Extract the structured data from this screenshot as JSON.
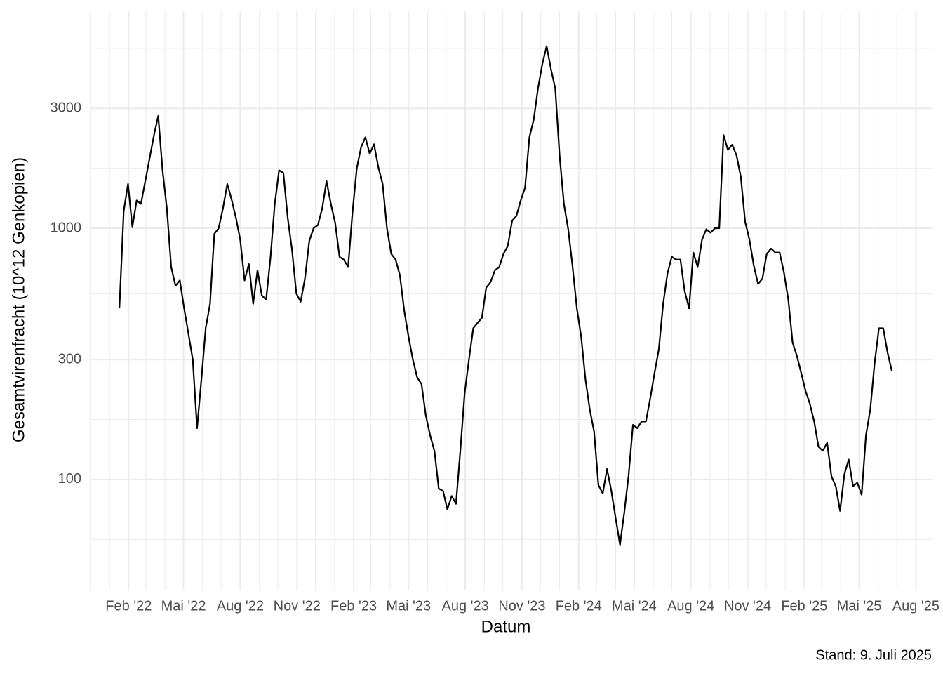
{
  "chart_data": {
    "type": "line",
    "x_label": "Datum",
    "y_label": "Gesamtvirenfracht (10^12 Genkopien)",
    "caption": "Stand: 9. Juli 2025",
    "log_y": true,
    "grid": true,
    "xlim": [
      "2021-11-30",
      "2025-08-29"
    ],
    "ylim": [
      36.4,
      7350
    ],
    "yticks": [
      100,
      300,
      1000,
      3000
    ],
    "y_minor_ticks": [
      57.7,
      173.2,
      547.7,
      1732,
      5196
    ],
    "xticks": [
      {
        "value": "2022-02-01",
        "label": "Feb '22"
      },
      {
        "value": "2022-05-01",
        "label": "Mai '22"
      },
      {
        "value": "2022-08-01",
        "label": "Aug '22"
      },
      {
        "value": "2022-11-01",
        "label": "Nov '22"
      },
      {
        "value": "2023-02-01",
        "label": "Feb '23"
      },
      {
        "value": "2023-05-01",
        "label": "Mai '23"
      },
      {
        "value": "2023-08-01",
        "label": "Aug '23"
      },
      {
        "value": "2023-11-01",
        "label": "Nov '23"
      },
      {
        "value": "2024-02-01",
        "label": "Feb '24"
      },
      {
        "value": "2024-05-01",
        "label": "Mai '24"
      },
      {
        "value": "2024-08-01",
        "label": "Aug '24"
      },
      {
        "value": "2024-11-01",
        "label": "Nov '24"
      },
      {
        "value": "2025-02-01",
        "label": "Feb '25"
      },
      {
        "value": "2025-05-01",
        "label": "Mai '25"
      },
      {
        "value": "2025-08-01",
        "label": "Aug '25"
      }
    ],
    "x_minor_ticks": [
      "2021-12-01",
      "2022-01-01",
      "2022-03-01",
      "2022-04-01",
      "2022-06-01",
      "2022-07-01",
      "2022-09-01",
      "2022-10-01",
      "2022-12-01",
      "2023-01-01",
      "2023-03-01",
      "2023-04-01",
      "2023-06-01",
      "2023-07-01",
      "2023-09-01",
      "2023-10-01",
      "2023-12-01",
      "2024-01-01",
      "2024-03-01",
      "2024-04-01",
      "2024-06-01",
      "2024-07-01",
      "2024-09-01",
      "2024-10-01",
      "2024-12-01",
      "2025-01-01",
      "2025-03-01",
      "2025-04-01",
      "2025-06-01",
      "2025-07-01"
    ],
    "x": [
      "2022-01-17",
      "2022-01-24",
      "2022-01-31",
      "2022-02-07",
      "2022-02-14",
      "2022-02-21",
      "2022-02-28",
      "2022-03-07",
      "2022-03-14",
      "2022-03-21",
      "2022-03-28",
      "2022-04-04",
      "2022-04-11",
      "2022-04-18",
      "2022-04-25",
      "2022-05-02",
      "2022-05-09",
      "2022-05-16",
      "2022-05-23",
      "2022-05-30",
      "2022-06-06",
      "2022-06-13",
      "2022-06-20",
      "2022-06-27",
      "2022-07-04",
      "2022-07-11",
      "2022-07-18",
      "2022-07-25",
      "2022-08-01",
      "2022-08-08",
      "2022-08-15",
      "2022-08-22",
      "2022-08-29",
      "2022-09-05",
      "2022-09-12",
      "2022-09-19",
      "2022-09-26",
      "2022-10-03",
      "2022-10-10",
      "2022-10-17",
      "2022-10-24",
      "2022-10-31",
      "2022-11-07",
      "2022-11-14",
      "2022-11-21",
      "2022-11-28",
      "2022-12-05",
      "2022-12-12",
      "2022-12-19",
      "2022-12-26",
      "2023-01-02",
      "2023-01-09",
      "2023-01-16",
      "2023-01-23",
      "2023-01-30",
      "2023-02-06",
      "2023-02-13",
      "2023-02-20",
      "2023-02-27",
      "2023-03-06",
      "2023-03-13",
      "2023-03-20",
      "2023-03-27",
      "2023-04-03",
      "2023-04-10",
      "2023-04-17",
      "2023-04-24",
      "2023-05-01",
      "2023-05-08",
      "2023-05-15",
      "2023-05-22",
      "2023-05-29",
      "2023-06-05",
      "2023-06-12",
      "2023-06-19",
      "2023-06-26",
      "2023-07-03",
      "2023-07-10",
      "2023-07-17",
      "2023-07-24",
      "2023-07-31",
      "2023-08-07",
      "2023-08-14",
      "2023-08-21",
      "2023-08-28",
      "2023-09-04",
      "2023-09-11",
      "2023-09-18",
      "2023-09-25",
      "2023-10-02",
      "2023-10-09",
      "2023-10-16",
      "2023-10-23",
      "2023-10-30",
      "2023-11-06",
      "2023-11-13",
      "2023-11-20",
      "2023-11-27",
      "2023-12-04",
      "2023-12-11",
      "2023-12-18",
      "2023-12-25",
      "2024-01-01",
      "2024-01-08",
      "2024-01-15",
      "2024-01-22",
      "2024-01-29",
      "2024-02-05",
      "2024-02-12",
      "2024-02-19",
      "2024-02-26",
      "2024-03-04",
      "2024-03-11",
      "2024-03-18",
      "2024-03-25",
      "2024-04-01",
      "2024-04-08",
      "2024-04-15",
      "2024-04-22",
      "2024-04-29",
      "2024-05-06",
      "2024-05-13",
      "2024-05-20",
      "2024-05-27",
      "2024-06-03",
      "2024-06-10",
      "2024-06-17",
      "2024-06-24",
      "2024-07-01",
      "2024-07-08",
      "2024-07-15",
      "2024-07-22",
      "2024-07-29",
      "2024-08-05",
      "2024-08-12",
      "2024-08-19",
      "2024-08-26",
      "2024-09-02",
      "2024-09-09",
      "2024-09-16",
      "2024-09-23",
      "2024-09-30",
      "2024-10-07",
      "2024-10-14",
      "2024-10-21",
      "2024-10-28",
      "2024-11-04",
      "2024-11-11",
      "2024-11-18",
      "2024-11-25",
      "2024-12-02",
      "2024-12-09",
      "2024-12-16",
      "2024-12-23",
      "2024-12-30",
      "2025-01-06",
      "2025-01-13",
      "2025-01-20",
      "2025-01-27",
      "2025-02-03",
      "2025-02-10",
      "2025-02-17",
      "2025-02-24",
      "2025-03-03",
      "2025-03-10",
      "2025-03-17",
      "2025-03-24",
      "2025-03-31",
      "2025-04-07",
      "2025-04-14",
      "2025-04-21",
      "2025-04-28",
      "2025-05-05",
      "2025-05-12",
      "2025-05-19",
      "2025-05-26",
      "2025-06-02",
      "2025-06-09",
      "2025-06-16",
      "2025-06-23"
    ],
    "series": [
      {
        "color": "#000000",
        "values": [
          480,
          1170,
          1500,
          1010,
          1290,
          1250,
          1540,
          1900,
          2340,
          2800,
          1700,
          1200,
          700,
          590,
          620,
          480,
          380,
          300,
          160,
          250,
          400,
          500,
          950,
          1000,
          1200,
          1500,
          1300,
          1100,
          900,
          620,
          720,
          500,
          680,
          540,
          520,
          760,
          1250,
          1700,
          1660,
          1100,
          820,
          550,
          510,
          630,
          890,
          1000,
          1030,
          1200,
          1540,
          1250,
          1050,
          770,
          750,
          700,
          1150,
          1730,
          2100,
          2300,
          1980,
          2160,
          1750,
          1500,
          1000,
          790,
          750,
          650,
          470,
          370,
          300,
          255,
          240,
          180,
          150,
          130,
          92,
          90,
          76,
          86,
          80,
          130,
          220,
          300,
          400,
          420,
          440,
          580,
          610,
          680,
          700,
          790,
          850,
          1070,
          1120,
          1290,
          1450,
          2300,
          2700,
          3600,
          4500,
          5300,
          4300,
          3600,
          1950,
          1250,
          990,
          705,
          480,
          370,
          250,
          190,
          155,
          95,
          88,
          110,
          90,
          70,
          55,
          74,
          104,
          165,
          160,
          170,
          170,
          210,
          265,
          330,
          500,
          660,
          770,
          750,
          750,
          560,
          480,
          800,
          700,
          900,
          990,
          960,
          1000,
          1000,
          2350,
          2050,
          2150,
          1950,
          1600,
          1060,
          900,
          710,
          600,
          630,
          790,
          830,
          800,
          800,
          665,
          520,
          350,
          310,
          265,
          225,
          200,
          170,
          135,
          130,
          140,
          103,
          94,
          75,
          105,
          120,
          94,
          97,
          87,
          150,
          190,
          290,
          400,
          400,
          320,
          270
        ]
      }
    ]
  }
}
